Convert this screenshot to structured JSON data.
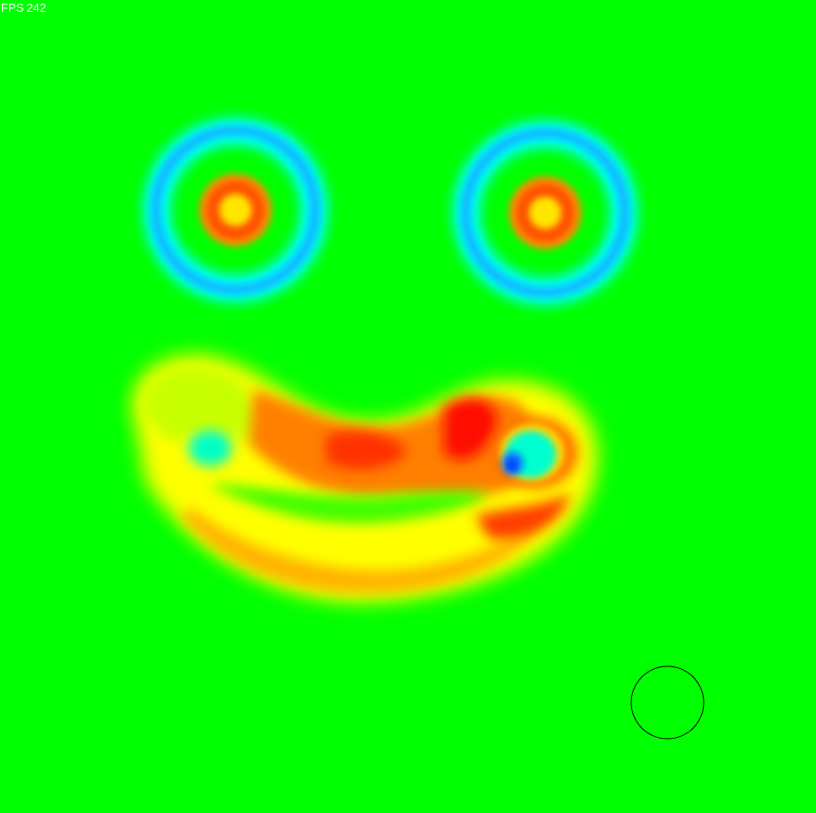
{
  "fps": {
    "label": "FPS",
    "value": "242"
  },
  "field": {
    "background_color": "#00ff00",
    "colormap": [
      "#0000ff",
      "#00ffff",
      "#00ff00",
      "#ffff00",
      "#ff0000"
    ]
  },
  "cursor": {
    "shape": "circle-outline",
    "stroke_color": "#000000"
  }
}
